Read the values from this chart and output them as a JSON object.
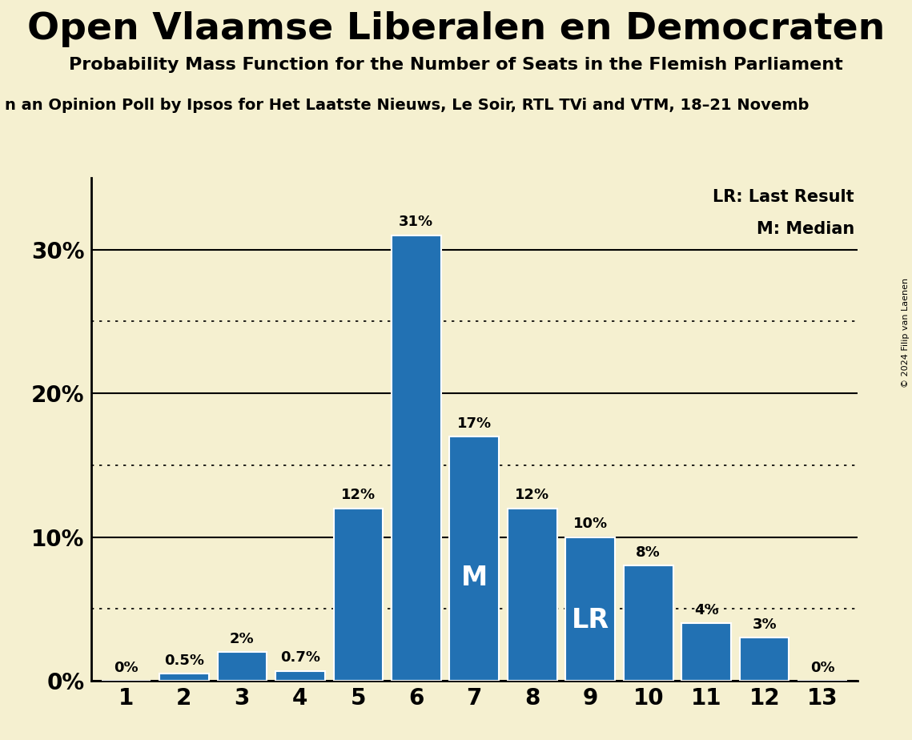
{
  "title": "Open Vlaamse Liberalen en Democraten",
  "subtitle": "Probability Mass Function for the Number of Seats in the Flemish Parliament",
  "sub_subtitle": "n an Opinion Poll by Ipsos for Het Laatste Nieuws, Le Soir, RTL TVi and VTM, 18–21 Novemb",
  "copyright": "© 2024 Filip van Laenen",
  "seats": [
    1,
    2,
    3,
    4,
    5,
    6,
    7,
    8,
    9,
    10,
    11,
    12,
    13
  ],
  "probabilities": [
    0.0,
    0.5,
    2.0,
    0.7,
    12.0,
    31.0,
    17.0,
    12.0,
    10.0,
    8.0,
    4.0,
    3.0,
    0.0
  ],
  "bar_color": "#2271b3",
  "background_color": "#f5f0d0",
  "median_seat": 7,
  "last_result_seat": 9,
  "ylabel_ticks": [
    0,
    10,
    20,
    30
  ],
  "dotted_ticks": [
    5,
    15,
    25
  ],
  "ylim": [
    0,
    35
  ],
  "bar_labels": [
    "0%",
    "0.5%",
    "2%",
    "0.7%",
    "12%",
    "31%",
    "17%",
    "12%",
    "10%",
    "8%",
    "4%",
    "3%",
    "0%"
  ],
  "legend_lr": "LR: Last Result",
  "legend_m": "M: Median"
}
